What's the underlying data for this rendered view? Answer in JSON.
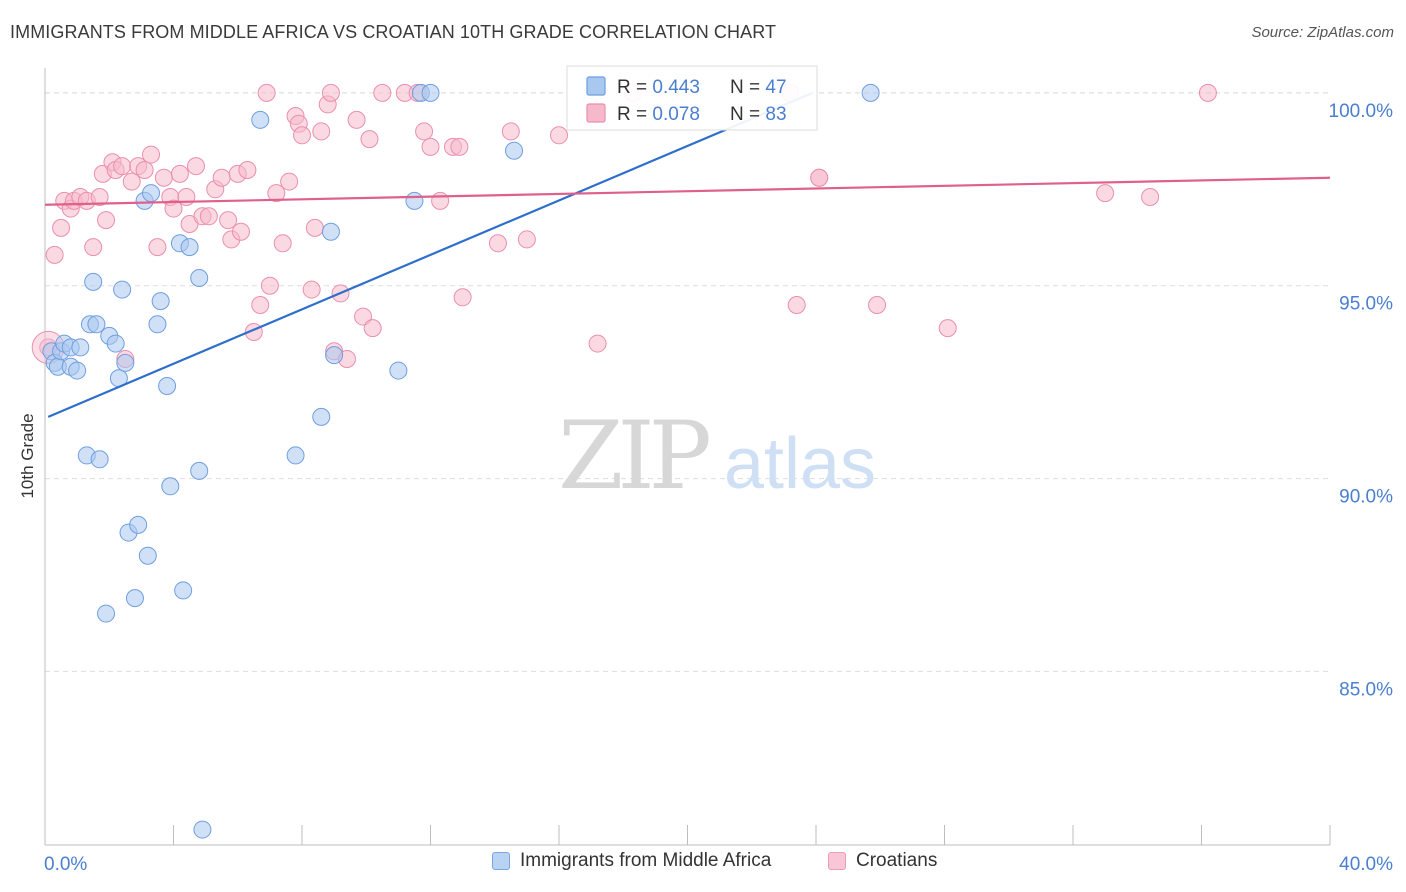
{
  "header": {
    "title": "IMMIGRANTS FROM MIDDLE AFRICA VS CROATIAN 10TH GRADE CORRELATION CHART",
    "source": "Source: ZipAtlas.com"
  },
  "watermark": {
    "zip": "ZIP",
    "atlas": "atlas"
  },
  "colors": {
    "blue_fill": "#a9c8f0",
    "blue_stroke": "#6f9ee0",
    "blue_line": "#2e6fcc",
    "pink_fill": "#f6b9cc",
    "pink_stroke": "#ea8fae",
    "pink_line": "#e0608c",
    "axis_label_blue": "#4a7fd0",
    "grid": "#dddddd"
  },
  "stats_legend": {
    "r_label": "R = ",
    "n_label": "N = ",
    "rows": [
      {
        "r": "0.443",
        "n": "47"
      },
      {
        "r": "0.078",
        "n": "83"
      }
    ]
  },
  "chart_data": {
    "type": "scatter",
    "title": "IMMIGRANTS FROM MIDDLE AFRICA VS CROATIAN 10TH GRADE CORRELATION CHART",
    "xlabel": "",
    "ylabel": "10th Grade",
    "xlim": [
      0,
      40
    ],
    "ylim": [
      80.5,
      100.8
    ],
    "x_ticks": [
      "0.0%",
      "40.0%"
    ],
    "y_ticks": [
      {
        "value": 85,
        "label": "85.0%"
      },
      {
        "value": 90,
        "label": "90.0%"
      },
      {
        "value": 95,
        "label": "95.0%"
      },
      {
        "value": 100,
        "label": "100.0%"
      }
    ],
    "grid": true,
    "legend_position": "bottom",
    "series": [
      {
        "name": "Immigrants from Middle Africa",
        "color": "blue",
        "trend": {
          "x0": 0.1,
          "y0": 91.6,
          "x1": 23.9,
          "y1": 100.0
        },
        "points": [
          [
            0.2,
            93.3
          ],
          [
            0.3,
            93.0
          ],
          [
            0.4,
            92.9
          ],
          [
            0.5,
            93.3
          ],
          [
            0.6,
            93.5
          ],
          [
            0.8,
            92.9
          ],
          [
            0.8,
            93.4
          ],
          [
            1.0,
            92.8
          ],
          [
            1.1,
            93.4
          ],
          [
            1.3,
            90.6
          ],
          [
            1.4,
            94.0
          ],
          [
            1.5,
            95.1
          ],
          [
            1.6,
            94.0
          ],
          [
            1.7,
            90.5
          ],
          [
            1.9,
            86.5
          ],
          [
            2.0,
            93.7
          ],
          [
            2.2,
            93.5
          ],
          [
            2.3,
            92.6
          ],
          [
            2.4,
            94.9
          ],
          [
            2.5,
            93.0
          ],
          [
            2.6,
            88.6
          ],
          [
            2.8,
            86.9
          ],
          [
            2.9,
            88.8
          ],
          [
            3.1,
            97.2
          ],
          [
            3.2,
            88.0
          ],
          [
            3.3,
            97.4
          ],
          [
            3.5,
            94.0
          ],
          [
            3.6,
            94.6
          ],
          [
            3.8,
            92.4
          ],
          [
            3.9,
            89.8
          ],
          [
            4.2,
            96.1
          ],
          [
            4.3,
            87.1
          ],
          [
            4.5,
            96.0
          ],
          [
            4.8,
            95.2
          ],
          [
            4.8,
            90.2
          ],
          [
            4.9,
            80.9
          ],
          [
            6.7,
            99.3
          ],
          [
            7.8,
            90.6
          ],
          [
            8.6,
            91.6
          ],
          [
            8.9,
            96.4
          ],
          [
            9.0,
            93.2
          ],
          [
            11.0,
            92.8
          ],
          [
            11.5,
            97.2
          ],
          [
            11.7,
            100.0
          ],
          [
            12.0,
            100.0
          ],
          [
            14.6,
            98.5
          ],
          [
            25.7,
            100.0
          ]
        ]
      },
      {
        "name": "Croatians",
        "color": "pink",
        "trend": {
          "x0": 0.0,
          "y0": 97.1,
          "x1": 40.0,
          "y1": 97.8
        },
        "points": [
          [
            0.1,
            93.4
          ],
          [
            0.3,
            95.8
          ],
          [
            0.5,
            96.5
          ],
          [
            0.6,
            97.2
          ],
          [
            0.8,
            97.0
          ],
          [
            0.9,
            97.2
          ],
          [
            1.1,
            97.3
          ],
          [
            1.3,
            97.2
          ],
          [
            1.5,
            96.0
          ],
          [
            1.7,
            97.3
          ],
          [
            1.8,
            97.9
          ],
          [
            1.9,
            96.7
          ],
          [
            2.1,
            98.2
          ],
          [
            2.2,
            98.0
          ],
          [
            2.4,
            98.1
          ],
          [
            2.5,
            93.1
          ],
          [
            2.7,
            97.7
          ],
          [
            2.9,
            98.1
          ],
          [
            3.1,
            98.0
          ],
          [
            3.3,
            98.4
          ],
          [
            3.5,
            96.0
          ],
          [
            3.7,
            97.8
          ],
          [
            3.9,
            97.3
          ],
          [
            4.0,
            97.0
          ],
          [
            4.2,
            97.9
          ],
          [
            4.4,
            97.3
          ],
          [
            4.5,
            96.6
          ],
          [
            4.7,
            98.1
          ],
          [
            4.9,
            96.8
          ],
          [
            5.1,
            96.8
          ],
          [
            5.3,
            97.5
          ],
          [
            5.5,
            97.8
          ],
          [
            5.7,
            96.7
          ],
          [
            5.8,
            96.2
          ],
          [
            6.0,
            97.9
          ],
          [
            6.1,
            96.4
          ],
          [
            6.3,
            98.0
          ],
          [
            6.5,
            93.8
          ],
          [
            6.7,
            94.5
          ],
          [
            6.9,
            100.0
          ],
          [
            7.0,
            95.0
          ],
          [
            7.2,
            97.4
          ],
          [
            7.4,
            96.1
          ],
          [
            7.6,
            97.7
          ],
          [
            7.8,
            99.4
          ],
          [
            7.9,
            99.2
          ],
          [
            8.0,
            98.9
          ],
          [
            8.3,
            94.9
          ],
          [
            8.4,
            96.5
          ],
          [
            8.6,
            99.0
          ],
          [
            8.8,
            99.7
          ],
          [
            8.9,
            100.0
          ],
          [
            9.0,
            93.3
          ],
          [
            9.2,
            94.8
          ],
          [
            9.4,
            93.1
          ],
          [
            9.7,
            99.3
          ],
          [
            9.9,
            94.2
          ],
          [
            10.1,
            98.8
          ],
          [
            10.2,
            93.9
          ],
          [
            10.5,
            100.0
          ],
          [
            11.2,
            100.0
          ],
          [
            11.6,
            100.0
          ],
          [
            11.8,
            99.0
          ],
          [
            12.0,
            98.6
          ],
          [
            12.3,
            97.2
          ],
          [
            12.7,
            98.6
          ],
          [
            12.9,
            98.6
          ],
          [
            13.0,
            94.7
          ],
          [
            14.1,
            96.1
          ],
          [
            14.5,
            99.0
          ],
          [
            15.0,
            96.2
          ],
          [
            16.0,
            98.9
          ],
          [
            17.2,
            93.5
          ],
          [
            18.3,
            100.0
          ],
          [
            23.2,
            100.0
          ],
          [
            23.4,
            94.5
          ],
          [
            24.1,
            97.8
          ],
          [
            25.9,
            94.5
          ],
          [
            28.1,
            93.9
          ],
          [
            33.0,
            97.4
          ],
          [
            34.4,
            97.3
          ],
          [
            36.2,
            100.0
          ],
          [
            24.1,
            97.8
          ]
        ]
      }
    ]
  }
}
